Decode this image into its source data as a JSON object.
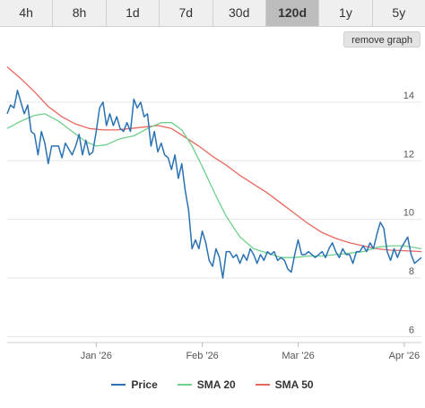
{
  "tabs": [
    {
      "label": "4h",
      "active": false
    },
    {
      "label": "8h",
      "active": false
    },
    {
      "label": "1d",
      "active": false
    },
    {
      "label": "7d",
      "active": false
    },
    {
      "label": "30d",
      "active": false
    },
    {
      "label": "120d",
      "active": true
    },
    {
      "label": "1y",
      "active": false
    },
    {
      "label": "5y",
      "active": false
    }
  ],
  "remove_graph_label": "remove graph",
  "chart_data": {
    "type": "line",
    "title": "",
    "xlabel": "",
    "ylabel": "",
    "x_range": [
      "2025-12-06",
      "2026-04-06"
    ],
    "ylim": [
      5.8,
      15.8
    ],
    "y_ticks": [
      6,
      8,
      10,
      12,
      14
    ],
    "y_tick_labels": [
      "6",
      "8",
      "10",
      "12",
      "14"
    ],
    "x_ticks": [
      "2026-01-01",
      "2026-02-01",
      "2026-03-01",
      "2026-04-01"
    ],
    "x_tick_labels": [
      "Jan '26",
      "Feb '26",
      "Mar '26",
      "Apr '26"
    ],
    "grid": true,
    "legend_position": "bottom",
    "series": [
      {
        "name": "Price",
        "color": "#2a72b3",
        "points": [
          [
            "2025-12-06",
            13.6
          ],
          [
            "2025-12-07",
            13.9
          ],
          [
            "2025-12-08",
            13.8
          ],
          [
            "2025-12-09",
            14.4
          ],
          [
            "2025-12-10",
            14.0
          ],
          [
            "2025-12-11",
            13.6
          ],
          [
            "2025-12-12",
            13.9
          ],
          [
            "2025-12-13",
            13.0
          ],
          [
            "2025-12-14",
            12.9
          ],
          [
            "2025-12-15",
            12.2
          ],
          [
            "2025-12-16",
            13.0
          ],
          [
            "2025-12-17",
            12.6
          ],
          [
            "2025-12-18",
            11.9
          ],
          [
            "2025-12-19",
            12.5
          ],
          [
            "2025-12-20",
            12.5
          ],
          [
            "2025-12-21",
            12.5
          ],
          [
            "2025-12-22",
            12.1
          ],
          [
            "2025-12-23",
            12.6
          ],
          [
            "2025-12-24",
            12.4
          ],
          [
            "2025-12-25",
            12.2
          ],
          [
            "2025-12-26",
            12.5
          ],
          [
            "2025-12-27",
            12.9
          ],
          [
            "2025-12-28",
            12.2
          ],
          [
            "2025-12-29",
            12.7
          ],
          [
            "2025-12-30",
            12.2
          ],
          [
            "2025-12-31",
            12.3
          ],
          [
            "2026-01-01",
            13.0
          ],
          [
            "2026-01-02",
            13.8
          ],
          [
            "2026-01-03",
            14.0
          ],
          [
            "2026-01-04",
            13.2
          ],
          [
            "2026-01-05",
            13.6
          ],
          [
            "2026-01-06",
            13.2
          ],
          [
            "2026-01-07",
            13.5
          ],
          [
            "2026-01-08",
            13.1
          ],
          [
            "2026-01-09",
            13.0
          ],
          [
            "2026-01-10",
            13.3
          ],
          [
            "2026-01-11",
            13.0
          ],
          [
            "2026-01-12",
            14.1
          ],
          [
            "2026-01-13",
            13.8
          ],
          [
            "2026-01-14",
            14.0
          ],
          [
            "2026-01-15",
            13.5
          ],
          [
            "2026-01-16",
            13.6
          ],
          [
            "2026-01-17",
            12.5
          ],
          [
            "2026-01-18",
            13.0
          ],
          [
            "2026-01-19",
            12.3
          ],
          [
            "2026-01-20",
            12.6
          ],
          [
            "2026-01-21",
            12.2
          ],
          [
            "2026-01-22",
            12.1
          ],
          [
            "2026-01-23",
            11.7
          ],
          [
            "2026-01-24",
            12.2
          ],
          [
            "2026-01-25",
            11.4
          ],
          [
            "2026-01-26",
            11.9
          ],
          [
            "2026-01-27",
            11.0
          ],
          [
            "2026-01-28",
            10.3
          ],
          [
            "2026-01-29",
            9.0
          ],
          [
            "2026-01-30",
            9.3
          ],
          [
            "2026-01-31",
            9.0
          ],
          [
            "2026-02-01",
            9.6
          ],
          [
            "2026-02-02",
            9.2
          ],
          [
            "2026-02-03",
            8.6
          ],
          [
            "2026-02-04",
            8.4
          ],
          [
            "2026-02-05",
            9.0
          ],
          [
            "2026-02-06",
            8.7
          ],
          [
            "2026-02-07",
            8.0
          ],
          [
            "2026-02-08",
            8.9
          ],
          [
            "2026-02-09",
            8.9
          ],
          [
            "2026-02-10",
            8.7
          ],
          [
            "2026-02-11",
            8.8
          ],
          [
            "2026-02-12",
            8.5
          ],
          [
            "2026-02-13",
            8.8
          ],
          [
            "2026-02-14",
            8.6
          ],
          [
            "2026-02-15",
            9.0
          ],
          [
            "2026-02-16",
            8.8
          ],
          [
            "2026-02-17",
            8.5
          ],
          [
            "2026-02-18",
            8.8
          ],
          [
            "2026-02-19",
            8.6
          ],
          [
            "2026-02-20",
            8.9
          ],
          [
            "2026-02-21",
            8.8
          ],
          [
            "2026-02-22",
            8.9
          ],
          [
            "2026-02-23",
            8.6
          ],
          [
            "2026-02-24",
            8.7
          ],
          [
            "2026-02-25",
            8.6
          ],
          [
            "2026-02-26",
            8.3
          ],
          [
            "2026-02-27",
            8.2
          ],
          [
            "2026-02-28",
            8.8
          ],
          [
            "2026-03-01",
            9.3
          ],
          [
            "2026-03-02",
            8.8
          ],
          [
            "2026-03-03",
            8.8
          ],
          [
            "2026-03-04",
            8.9
          ],
          [
            "2026-03-05",
            8.8
          ],
          [
            "2026-03-06",
            8.7
          ],
          [
            "2026-03-07",
            8.8
          ],
          [
            "2026-03-08",
            8.9
          ],
          [
            "2026-03-09",
            8.7
          ],
          [
            "2026-03-10",
            9.0
          ],
          [
            "2026-03-11",
            9.2
          ],
          [
            "2026-03-12",
            8.9
          ],
          [
            "2026-03-13",
            8.7
          ],
          [
            "2026-03-14",
            9.0
          ],
          [
            "2026-03-15",
            8.8
          ],
          [
            "2026-03-16",
            8.8
          ],
          [
            "2026-03-17",
            8.5
          ],
          [
            "2026-03-18",
            8.9
          ],
          [
            "2026-03-19",
            8.9
          ],
          [
            "2026-03-20",
            9.1
          ],
          [
            "2026-03-21",
            8.9
          ],
          [
            "2026-03-22",
            9.2
          ],
          [
            "2026-03-23",
            9.0
          ],
          [
            "2026-03-24",
            9.5
          ],
          [
            "2026-03-25",
            9.9
          ],
          [
            "2026-03-26",
            9.7
          ],
          [
            "2026-03-27",
            8.9
          ],
          [
            "2026-03-28",
            8.6
          ],
          [
            "2026-03-29",
            9.0
          ],
          [
            "2026-03-30",
            8.7
          ],
          [
            "2026-03-31",
            9.0
          ],
          [
            "2026-04-01",
            9.2
          ],
          [
            "2026-04-02",
            9.4
          ],
          [
            "2026-04-03",
            8.8
          ],
          [
            "2026-04-04",
            8.5
          ],
          [
            "2026-04-05",
            8.6
          ],
          [
            "2026-04-06",
            8.7
          ]
        ]
      },
      {
        "name": "SMA 20",
        "color": "#6fd08c",
        "points": [
          [
            "2025-12-06",
            13.1
          ],
          [
            "2025-12-10",
            13.35
          ],
          [
            "2025-12-14",
            13.55
          ],
          [
            "2025-12-17",
            13.6
          ],
          [
            "2025-12-21",
            13.35
          ],
          [
            "2025-12-25",
            13.0
          ],
          [
            "2025-12-29",
            12.65
          ],
          [
            "2026-01-01",
            12.5
          ],
          [
            "2026-01-04",
            12.55
          ],
          [
            "2026-01-08",
            12.75
          ],
          [
            "2026-01-12",
            12.85
          ],
          [
            "2026-01-16",
            13.1
          ],
          [
            "2026-01-20",
            13.3
          ],
          [
            "2026-01-23",
            13.3
          ],
          [
            "2026-01-26",
            13.05
          ],
          [
            "2026-01-29",
            12.5
          ],
          [
            "2026-02-01",
            11.8
          ],
          [
            "2026-02-05",
            10.8
          ],
          [
            "2026-02-08",
            10.1
          ],
          [
            "2026-02-12",
            9.4
          ],
          [
            "2026-02-16",
            9.0
          ],
          [
            "2026-02-20",
            8.85
          ],
          [
            "2026-02-24",
            8.7
          ],
          [
            "2026-02-28",
            8.7
          ],
          [
            "2026-03-04",
            8.75
          ],
          [
            "2026-03-08",
            8.75
          ],
          [
            "2026-03-12",
            8.8
          ],
          [
            "2026-03-16",
            8.85
          ],
          [
            "2026-03-20",
            8.9
          ],
          [
            "2026-03-24",
            9.05
          ],
          [
            "2026-03-28",
            9.1
          ],
          [
            "2026-04-01",
            9.1
          ],
          [
            "2026-04-06",
            9.0
          ]
        ]
      },
      {
        "name": "SMA 50",
        "color": "#e8675d",
        "points": [
          [
            "2025-12-06",
            15.2
          ],
          [
            "2025-12-10",
            14.8
          ],
          [
            "2025-12-14",
            14.35
          ],
          [
            "2025-12-18",
            13.85
          ],
          [
            "2025-12-22",
            13.5
          ],
          [
            "2025-12-26",
            13.25
          ],
          [
            "2025-12-30",
            13.1
          ],
          [
            "2026-01-03",
            13.05
          ],
          [
            "2026-01-07",
            13.05
          ],
          [
            "2026-01-11",
            13.1
          ],
          [
            "2026-01-15",
            13.15
          ],
          [
            "2026-01-19",
            13.2
          ],
          [
            "2026-01-23",
            13.1
          ],
          [
            "2026-01-27",
            12.8
          ],
          [
            "2026-01-31",
            12.5
          ],
          [
            "2026-02-04",
            12.15
          ],
          [
            "2026-02-08",
            11.85
          ],
          [
            "2026-02-12",
            11.5
          ],
          [
            "2026-02-16",
            11.2
          ],
          [
            "2026-02-20",
            10.9
          ],
          [
            "2026-02-24",
            10.55
          ],
          [
            "2026-02-28",
            10.2
          ],
          [
            "2026-03-04",
            9.85
          ],
          [
            "2026-03-08",
            9.55
          ],
          [
            "2026-03-12",
            9.35
          ],
          [
            "2026-03-16",
            9.2
          ],
          [
            "2026-03-20",
            9.1
          ],
          [
            "2026-03-24",
            9.0
          ],
          [
            "2026-03-28",
            8.95
          ],
          [
            "2026-04-01",
            8.93
          ],
          [
            "2026-04-06",
            8.9
          ]
        ]
      }
    ]
  }
}
